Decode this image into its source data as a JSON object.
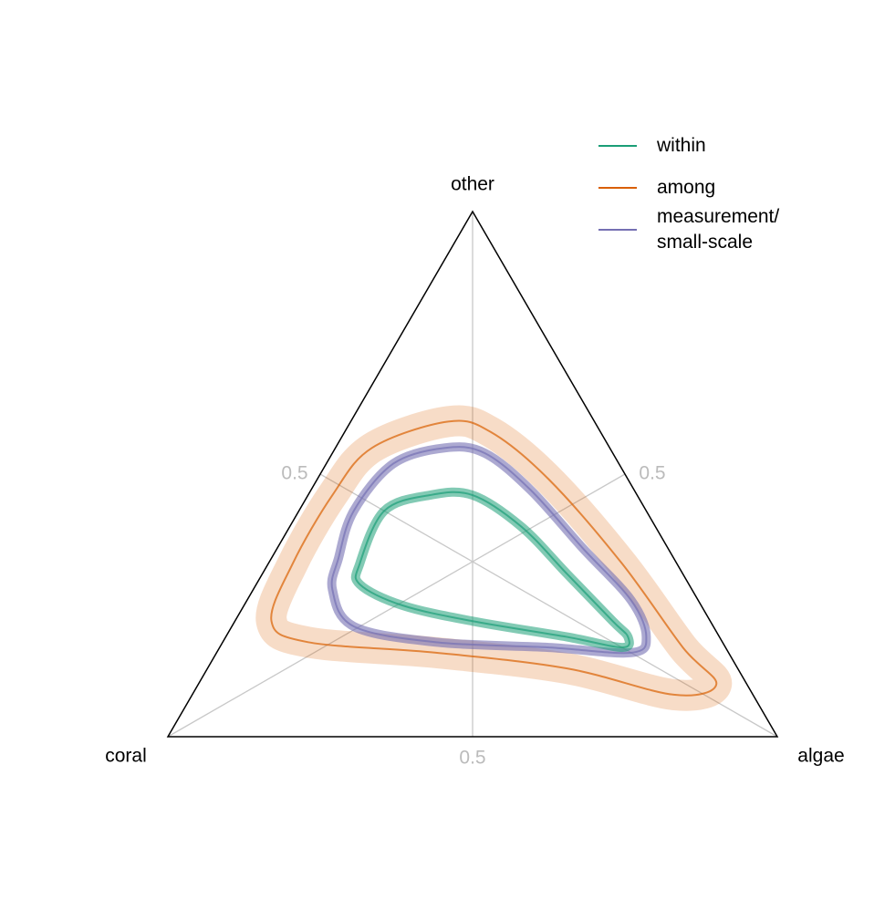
{
  "chart_data": {
    "type": "ternary",
    "axes": [
      "coral",
      "algae",
      "other"
    ],
    "ticks": [
      0.5
    ],
    "legend": "top-right",
    "series": [
      {
        "name": "within",
        "color": "#1b9e77",
        "coral": [
          0.52,
          0.43,
          0.34,
          0.27,
          0.22,
          0.19,
          0.16,
          0.15,
          0.17,
          0.25,
          0.39,
          0.49,
          0.54
        ],
        "algae": [
          0.15,
          0.14,
          0.2,
          0.27,
          0.38,
          0.5,
          0.62,
          0.66,
          0.66,
          0.56,
          0.39,
          0.26,
          0.17
        ],
        "other": [
          0.33,
          0.43,
          0.46,
          0.46,
          0.4,
          0.31,
          0.22,
          0.19,
          0.17,
          0.19,
          0.22,
          0.25,
          0.29
        ]
      },
      {
        "name": "among",
        "color": "#d95f02",
        "coral": [
          0.72,
          0.63,
          0.5,
          0.39,
          0.24,
          0.18,
          0.13,
          0.09,
          0.07,
          0.05,
          0.13,
          0.28,
          0.48,
          0.68
        ],
        "algae": [
          0.06,
          0.04,
          0.04,
          0.06,
          0.16,
          0.24,
          0.38,
          0.58,
          0.76,
          0.85,
          0.79,
          0.59,
          0.36,
          0.14
        ],
        "other": [
          0.22,
          0.33,
          0.46,
          0.55,
          0.6,
          0.58,
          0.49,
          0.33,
          0.17,
          0.1,
          0.08,
          0.13,
          0.16,
          0.18
        ]
      },
      {
        "name": "measurement/\nsmall-scale",
        "color": "#7570b3",
        "coral": [
          0.55,
          0.48,
          0.37,
          0.27,
          0.21,
          0.17,
          0.14,
          0.11,
          0.12,
          0.16,
          0.29,
          0.47,
          0.59,
          0.59
        ],
        "algae": [
          0.11,
          0.09,
          0.11,
          0.18,
          0.25,
          0.36,
          0.5,
          0.63,
          0.69,
          0.68,
          0.54,
          0.35,
          0.2,
          0.13
        ],
        "other": [
          0.34,
          0.43,
          0.52,
          0.55,
          0.54,
          0.47,
          0.36,
          0.26,
          0.19,
          0.16,
          0.17,
          0.18,
          0.21,
          0.28
        ]
      }
    ]
  }
}
